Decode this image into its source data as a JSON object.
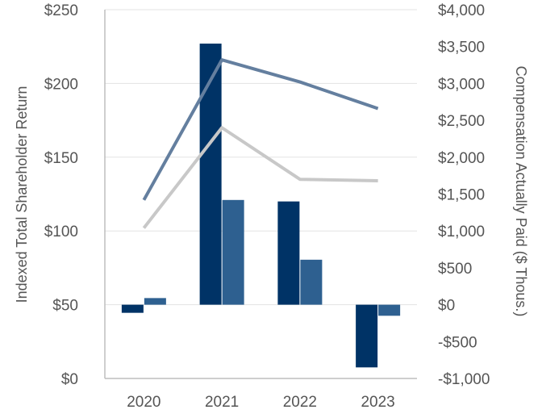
{
  "chart_data": {
    "type": "bar",
    "title": "",
    "categories": [
      "2020",
      "2021",
      "2022",
      "2023"
    ],
    "left_axis": {
      "label": "Indexed Total Shareholder Return",
      "ylim": [
        0,
        250
      ],
      "ticks": [
        0,
        50,
        100,
        150,
        200,
        250
      ],
      "tick_labels": [
        "$0",
        "$50",
        "$100",
        "$150",
        "$200",
        "$250"
      ]
    },
    "right_axis": {
      "label": "Compensation Actually Paid ($ Thous.)",
      "ylim": [
        -1000,
        4000
      ],
      "ticks": [
        -1000,
        -500,
        0,
        500,
        1000,
        1500,
        2000,
        2500,
        3000,
        3500,
        4000
      ],
      "tick_labels": [
        "-$1,000",
        "-$500",
        "$0",
        "$500",
        "$1,000",
        "$1,500",
        "$2,000",
        "$2,500",
        "$3,000",
        "$3,500",
        "$4,000"
      ]
    },
    "bar_series": [
      {
        "axis": "right",
        "color": "#003366",
        "values": [
          -110,
          3540,
          1400,
          -850
        ]
      },
      {
        "axis": "right",
        "color": "#2e6090",
        "values": [
          90,
          1420,
          610,
          -150
        ]
      }
    ],
    "line_series": [
      {
        "axis": "left",
        "color": "#647f9f",
        "values": [
          121,
          216,
          201,
          183
        ]
      },
      {
        "axis": "left",
        "color": "#c8c8c8",
        "values": [
          102,
          170,
          135,
          134
        ]
      }
    ],
    "grid": "horizontal",
    "legend": "none"
  }
}
